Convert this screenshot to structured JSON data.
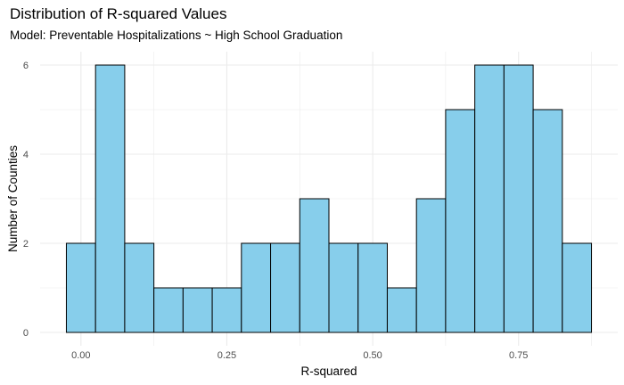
{
  "chart_data": {
    "type": "bar",
    "title": "Distribution of R-squared Values",
    "subtitle": "Model: Preventable Hospitalizations ~ High School Graduation",
    "xlabel": "R-squared",
    "ylabel": "Number of Counties",
    "bin_width": 0.05,
    "bin_starts": [
      -0.025,
      0.025,
      0.075,
      0.125,
      0.175,
      0.225,
      0.275,
      0.325,
      0.375,
      0.425,
      0.475,
      0.525,
      0.575,
      0.625,
      0.675,
      0.725,
      0.775,
      0.825
    ],
    "values": [
      2,
      6,
      2,
      1,
      1,
      1,
      2,
      2,
      3,
      2,
      2,
      1,
      3,
      5,
      6,
      6,
      5,
      2
    ],
    "xlim": [
      -0.07,
      0.92
    ],
    "ylim": [
      -0.3,
      6.3
    ],
    "x_ticks": [
      0.0,
      0.25,
      0.5,
      0.75
    ],
    "x_tick_labels": [
      "0.00",
      "0.25",
      "0.50",
      "0.75"
    ],
    "y_ticks": [
      0,
      2,
      4,
      6
    ],
    "y_tick_labels": [
      "0",
      "2",
      "4",
      "6"
    ],
    "bar_fill": "#87ceeb",
    "bar_outline": "#000000",
    "grid": true,
    "grid_color": "#ebebeb",
    "legend": "none"
  }
}
